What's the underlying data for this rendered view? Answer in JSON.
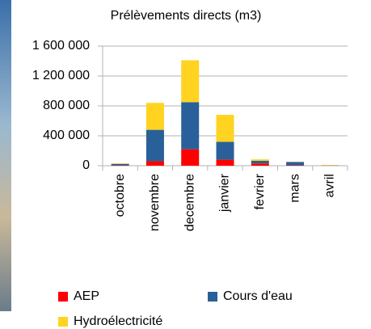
{
  "chart_data": {
    "type": "stacked_bar",
    "title": "Prélèvements directs (m3)",
    "categories": [
      "octobre",
      "novembre",
      "decembre",
      "janvier",
      "fevrier",
      "mars",
      "avril"
    ],
    "series": [
      {
        "name": "AEP",
        "color": "#ff0000",
        "values": [
          5000,
          60000,
          220000,
          80000,
          30000,
          5000,
          2000
        ]
      },
      {
        "name": "Cours d'eau",
        "color": "#2a6099",
        "values": [
          20000,
          420000,
          630000,
          240000,
          35000,
          45000,
          2000
        ]
      },
      {
        "name": "Hydroélectricité",
        "color": "#ffd320",
        "values": [
          5000,
          360000,
          560000,
          360000,
          20000,
          3000,
          5000
        ]
      }
    ],
    "ylim": [
      0,
      1600000
    ],
    "yticks": [
      0,
      {
        "value": 400000,
        "label": "400 000"
      },
      {
        "value": 800000,
        "label": "800 000"
      },
      {
        "value": 1200000,
        "label": "1 200 000"
      },
      {
        "value": 1600000,
        "label": "1 600 000"
      }
    ],
    "grid": true
  }
}
